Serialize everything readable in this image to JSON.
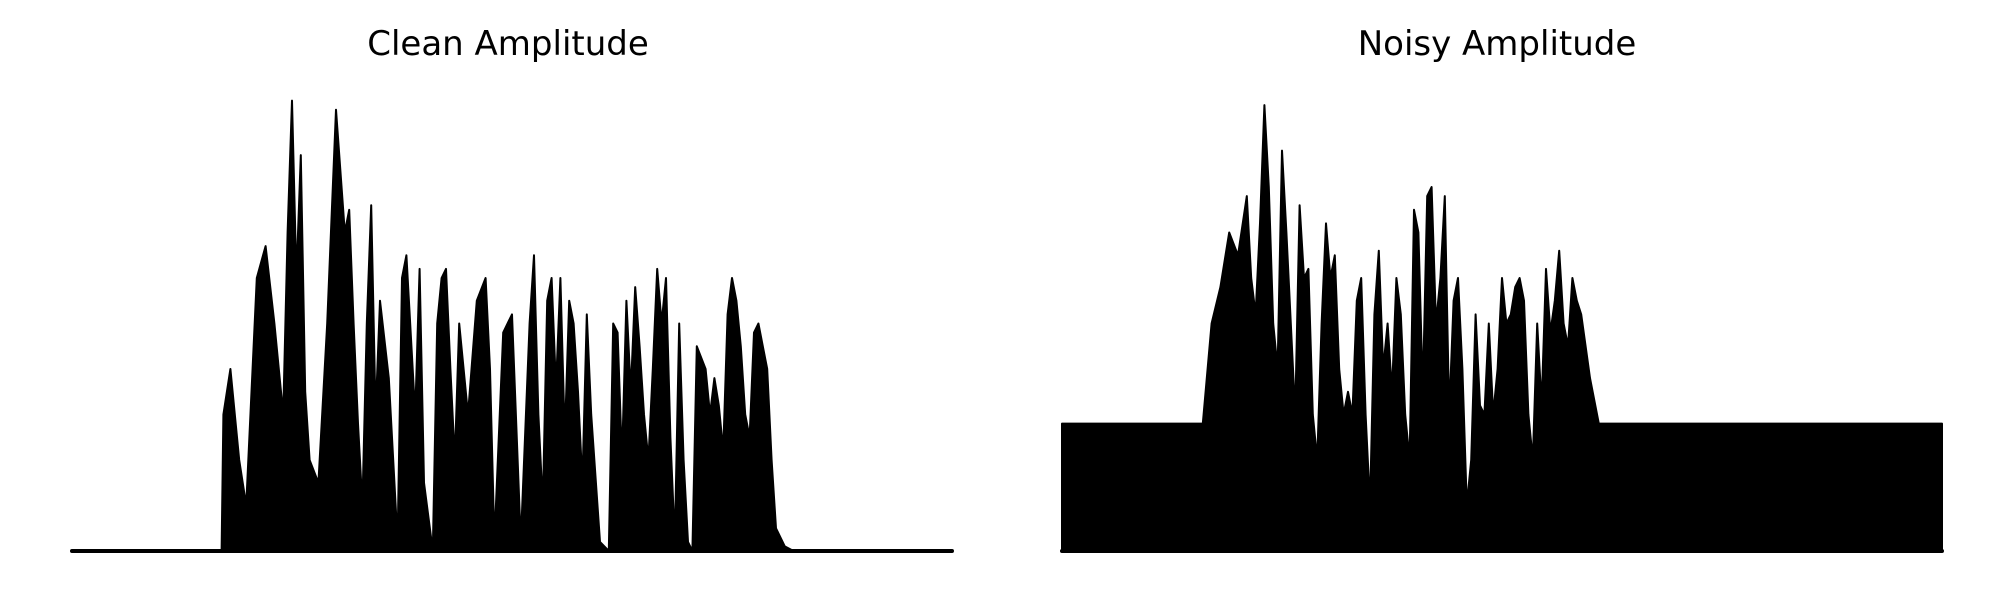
{
  "chart_data": [
    {
      "type": "line",
      "title": "Clean Amplitude",
      "xlabel": "",
      "ylabel": "",
      "axes": "off",
      "grid": false,
      "color": "#000000",
      "x_range": [
        0,
        1
      ],
      "ylim": [
        0,
        1.0
      ],
      "x": [
        0.0,
        0.17,
        0.172,
        0.18,
        0.19,
        0.198,
        0.21,
        0.22,
        0.23,
        0.24,
        0.245,
        0.25,
        0.255,
        0.26,
        0.265,
        0.27,
        0.28,
        0.29,
        0.3,
        0.31,
        0.315,
        0.32,
        0.325,
        0.33,
        0.335,
        0.34,
        0.345,
        0.35,
        0.36,
        0.37,
        0.375,
        0.38,
        0.39,
        0.395,
        0.4,
        0.41,
        0.415,
        0.42,
        0.425,
        0.43,
        0.435,
        0.44,
        0.45,
        0.46,
        0.47,
        0.475,
        0.48,
        0.49,
        0.5,
        0.51,
        0.52,
        0.525,
        0.53,
        0.535,
        0.54,
        0.545,
        0.55,
        0.555,
        0.56,
        0.565,
        0.57,
        0.575,
        0.58,
        0.585,
        0.59,
        0.6,
        0.61,
        0.615,
        0.62,
        0.625,
        0.63,
        0.635,
        0.64,
        0.645,
        0.65,
        0.655,
        0.66,
        0.665,
        0.67,
        0.675,
        0.68,
        0.685,
        0.69,
        0.695,
        0.7,
        0.705,
        0.71,
        0.72,
        0.725,
        0.73,
        0.735,
        0.74,
        0.745,
        0.75,
        0.755,
        0.76,
        0.765,
        0.77,
        0.775,
        0.78,
        0.785,
        0.79,
        0.795,
        0.8,
        0.81,
        0.82,
        0.825,
        0.83,
        0.835,
        0.84,
        0.845,
        0.85,
        0.855,
        0.86,
        0.87,
        0.88,
        0.885,
        0.89,
        0.9,
        0.91,
        0.915,
        0.92,
        0.93,
        1.0
      ],
      "y": [
        0.0,
        0.0,
        0.3,
        0.4,
        0.2,
        0.1,
        0.6,
        0.67,
        0.5,
        0.3,
        0.7,
        0.99,
        0.6,
        0.87,
        0.35,
        0.2,
        0.15,
        0.5,
        0.97,
        0.7,
        0.75,
        0.5,
        0.28,
        0.1,
        0.5,
        0.76,
        0.3,
        0.55,
        0.38,
        0.02,
        0.6,
        0.65,
        0.3,
        0.62,
        0.15,
        0.0,
        0.5,
        0.6,
        0.62,
        0.4,
        0.2,
        0.5,
        0.3,
        0.55,
        0.6,
        0.4,
        0.02,
        0.48,
        0.52,
        0.02,
        0.5,
        0.65,
        0.3,
        0.1,
        0.55,
        0.6,
        0.36,
        0.6,
        0.25,
        0.55,
        0.5,
        0.35,
        0.15,
        0.52,
        0.3,
        0.02,
        0.0,
        0.5,
        0.48,
        0.2,
        0.55,
        0.35,
        0.58,
        0.45,
        0.3,
        0.2,
        0.4,
        0.62,
        0.5,
        0.6,
        0.25,
        0.02,
        0.5,
        0.2,
        0.02,
        0.0,
        0.45,
        0.4,
        0.3,
        0.38,
        0.32,
        0.22,
        0.52,
        0.6,
        0.55,
        0.45,
        0.3,
        0.25,
        0.48,
        0.5,
        0.45,
        0.4,
        0.2,
        0.05,
        0.01,
        0.0,
        0.0,
        0.0,
        0.0,
        0.0,
        0.0,
        0.0,
        0.0,
        0.0,
        0.0,
        0.0,
        0.0,
        0.0,
        0.0,
        0.0,
        0.0,
        0.0,
        0.0,
        0.0
      ]
    },
    {
      "type": "line",
      "title": "Noisy Amplitude",
      "xlabel": "",
      "ylabel": "",
      "axes": "off",
      "grid": false,
      "color": "#000000",
      "x_range": [
        0,
        1
      ],
      "ylim": [
        0,
        1.0
      ],
      "noise_floor": 0.28,
      "x": [
        0.0,
        0.16,
        0.17,
        0.18,
        0.19,
        0.2,
        0.21,
        0.215,
        0.22,
        0.225,
        0.23,
        0.235,
        0.24,
        0.245,
        0.25,
        0.255,
        0.26,
        0.265,
        0.27,
        0.275,
        0.28,
        0.285,
        0.29,
        0.295,
        0.3,
        0.305,
        0.31,
        0.315,
        0.32,
        0.325,
        0.33,
        0.335,
        0.34,
        0.345,
        0.35,
        0.355,
        0.36,
        0.365,
        0.37,
        0.375,
        0.38,
        0.385,
        0.39,
        0.395,
        0.4,
        0.405,
        0.41,
        0.415,
        0.42,
        0.425,
        0.43,
        0.435,
        0.44,
        0.445,
        0.45,
        0.455,
        0.46,
        0.465,
        0.47,
        0.475,
        0.48,
        0.485,
        0.49,
        0.495,
        0.5,
        0.505,
        0.51,
        0.515,
        0.52,
        0.525,
        0.53,
        0.535,
        0.54,
        0.545,
        0.55,
        0.555,
        0.56,
        0.565,
        0.57,
        0.575,
        0.58,
        0.585,
        0.59,
        0.6,
        0.61,
        0.62,
        0.63,
        0.64,
        0.65,
        0.66,
        0.665,
        0.67,
        0.675,
        0.68,
        0.685,
        0.69,
        0.695,
        0.7,
        0.705,
        0.71,
        0.715,
        0.72,
        0.725,
        0.73,
        0.735,
        0.74,
        0.745,
        0.75,
        0.755,
        0.76,
        0.765,
        0.77,
        0.775,
        0.78,
        0.785,
        0.79,
        0.8,
        1.0
      ],
      "y": [
        0.28,
        0.28,
        0.5,
        0.58,
        0.7,
        0.65,
        0.78,
        0.6,
        0.52,
        0.72,
        0.98,
        0.8,
        0.5,
        0.4,
        0.88,
        0.7,
        0.5,
        0.3,
        0.76,
        0.6,
        0.62,
        0.3,
        0.2,
        0.5,
        0.72,
        0.6,
        0.65,
        0.4,
        0.3,
        0.35,
        0.3,
        0.55,
        0.6,
        0.3,
        0.1,
        0.52,
        0.66,
        0.4,
        0.5,
        0.35,
        0.6,
        0.52,
        0.3,
        0.2,
        0.75,
        0.7,
        0.35,
        0.78,
        0.8,
        0.5,
        0.6,
        0.78,
        0.3,
        0.55,
        0.6,
        0.4,
        0.1,
        0.2,
        0.52,
        0.32,
        0.3,
        0.5,
        0.3,
        0.4,
        0.6,
        0.5,
        0.52,
        0.58,
        0.6,
        0.55,
        0.3,
        0.2,
        0.5,
        0.32,
        0.62,
        0.48,
        0.55,
        0.66,
        0.5,
        0.45,
        0.6,
        0.55,
        0.52,
        0.38,
        0.28,
        0.28,
        0.28,
        0.28,
        0.28,
        0.28,
        0.28,
        0.28,
        0.28,
        0.28,
        0.28,
        0.28,
        0.28,
        0.28,
        0.28,
        0.28,
        0.28,
        0.28,
        0.28,
        0.28,
        0.28,
        0.28,
        0.28,
        0.28,
        0.28,
        0.28,
        0.28,
        0.28,
        0.28,
        0.28,
        0.28,
        0.28,
        0.28,
        0.28
      ]
    }
  ]
}
